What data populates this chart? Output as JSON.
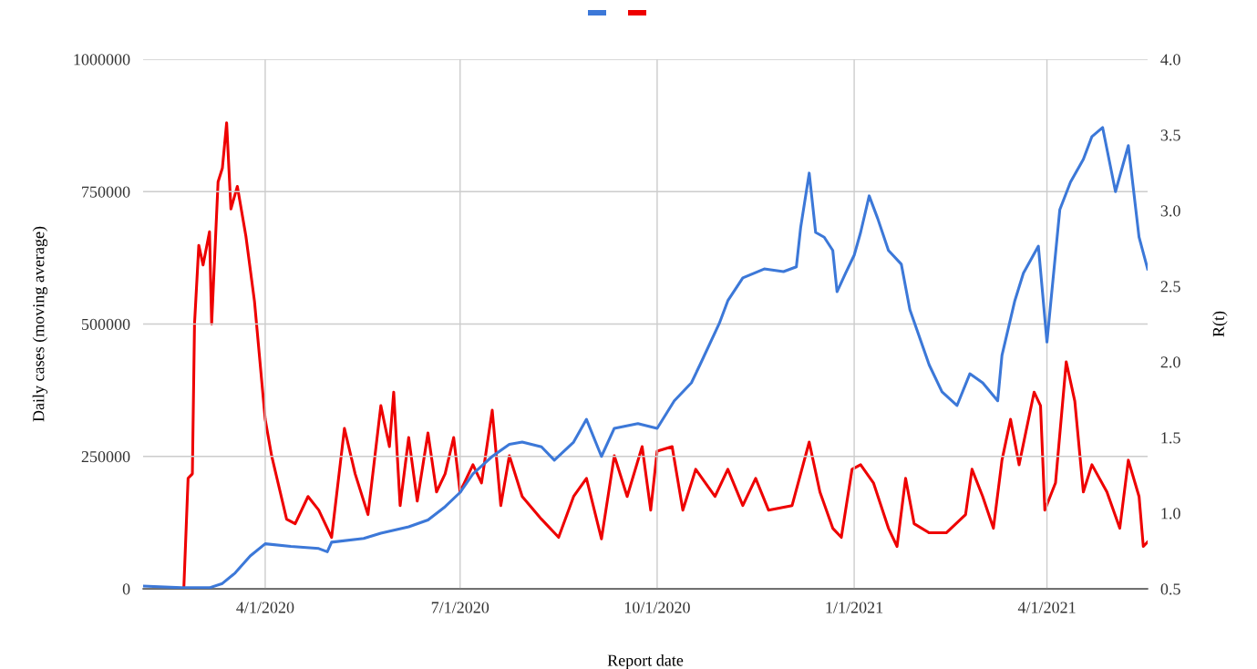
{
  "chart_data": {
    "type": "line",
    "xlabel": "Report date",
    "ylabel": "Daily cases (moving average)",
    "y2label": "R(t)",
    "xlim": [
      "2020-02-04",
      "2021-05-18"
    ],
    "xticks": [
      {
        "value": "2020-04-01",
        "label": "4/1/2020"
      },
      {
        "value": "2020-07-01",
        "label": "7/1/2020"
      },
      {
        "value": "2020-10-01",
        "label": "10/1/2020"
      },
      {
        "value": "2021-01-01",
        "label": "1/1/2021"
      },
      {
        "value": "2021-04-01",
        "label": "4/1/2021"
      }
    ],
    "ylim": [
      0,
      1000000
    ],
    "yticks": [
      0,
      250000,
      500000,
      750000,
      1000000
    ],
    "y2lim": [
      0.5,
      4.0
    ],
    "y2ticks": [
      0.5,
      {
        "value": 1.0,
        "label": "1.0"
      },
      1.5,
      {
        "value": 2.0,
        "label": "2.0"
      },
      2.5,
      {
        "value": 3.0,
        "label": "3.0"
      },
      3.5,
      {
        "value": 4.0,
        "label": "4.0"
      }
    ],
    "grid": true,
    "series": [
      {
        "color": "#3c78d8",
        "x": [
          "2020-02-04",
          "2020-02-22",
          "2020-03-06",
          "2020-03-12",
          "2020-03-18",
          "2020-03-25",
          "2020-04-01",
          "2020-04-13",
          "2020-04-26",
          "2020-04-30",
          "2020-05-02",
          "2020-05-17",
          "2020-05-25",
          "2020-06-07",
          "2020-06-16",
          "2020-06-24",
          "2020-07-01",
          "2020-07-07",
          "2020-07-16",
          "2020-07-24",
          "2020-07-30",
          "2020-08-08",
          "2020-08-14",
          "2020-08-23",
          "2020-08-29",
          "2020-09-05",
          "2020-09-11",
          "2020-09-22",
          "2020-10-01",
          "2020-10-09",
          "2020-10-17",
          "2020-10-21",
          "2020-10-30",
          "2020-11-03",
          "2020-11-10",
          "2020-11-20",
          "2020-11-29",
          "2020-12-05",
          "2020-12-07",
          "2020-12-11",
          "2020-12-14",
          "2020-12-18",
          "2020-12-22",
          "2020-12-24",
          "2020-12-28",
          "2021-01-01",
          "2021-01-04",
          "2021-01-08",
          "2021-01-12",
          "2021-01-17",
          "2021-01-23",
          "2021-01-27",
          "2021-02-05",
          "2021-02-11",
          "2021-02-18",
          "2021-02-24",
          "2021-03-02",
          "2021-03-09",
          "2021-03-11",
          "2021-03-17",
          "2021-03-21",
          "2021-03-28",
          "2021-04-01",
          "2021-04-07",
          "2021-04-12",
          "2021-04-18",
          "2021-04-22",
          "2021-04-27",
          "2021-05-03",
          "2021-05-09",
          "2021-05-14",
          "2021-05-18"
        ],
        "values": [
          5000,
          2000,
          2000,
          10000,
          30000,
          62000,
          85000,
          80000,
          76000,
          70000,
          88000,
          95000,
          105000,
          117000,
          130000,
          155000,
          182000,
          217000,
          250000,
          273000,
          277000,
          268000,
          243000,
          277000,
          320000,
          250000,
          303000,
          312000,
          303000,
          355000,
          389000,
          423000,
          501000,
          544000,
          587000,
          604000,
          599000,
          608000,
          682000,
          785000,
          673000,
          664000,
          639000,
          561000,
          596000,
          630000,
          673000,
          742000,
          699000,
          639000,
          613000,
          527000,
          423000,
          372000,
          346000,
          406000,
          389000,
          355000,
          441000,
          544000,
          596000,
          647000,
          466000,
          716000,
          768000,
          811000,
          854000,
          871000,
          750000,
          837000,
          664000,
          604000
        ]
      },
      {
        "color": "#ee0000",
        "axis": "y2",
        "x": [
          "2020-02-23",
          "2020-02-25",
          "2020-02-27",
          "2020-02-28",
          "2020-03-01",
          "2020-03-03",
          "2020-03-06",
          "2020-03-07",
          "2020-03-10",
          "2020-03-12",
          "2020-03-14",
          "2020-03-16",
          "2020-03-19",
          "2020-03-23",
          "2020-03-27",
          "2020-04-01",
          "2020-04-04",
          "2020-04-11",
          "2020-04-15",
          "2020-04-21",
          "2020-04-26",
          "2020-05-02",
          "2020-05-08",
          "2020-05-13",
          "2020-05-19",
          "2020-05-25",
          "2020-05-29",
          "2020-05-31",
          "2020-06-03",
          "2020-06-07",
          "2020-06-11",
          "2020-06-16",
          "2020-06-20",
          "2020-06-24",
          "2020-06-28",
          "2020-07-01",
          "2020-07-07",
          "2020-07-11",
          "2020-07-16",
          "2020-07-20",
          "2020-07-24",
          "2020-07-30",
          "2020-08-08",
          "2020-08-16",
          "2020-08-23",
          "2020-08-29",
          "2020-09-05",
          "2020-09-11",
          "2020-09-17",
          "2020-09-24",
          "2020-09-28",
          "2020-10-01",
          "2020-10-08",
          "2020-10-13",
          "2020-10-19",
          "2020-10-28",
          "2020-11-03",
          "2020-11-10",
          "2020-11-16",
          "2020-11-22",
          "2020-12-03",
          "2020-12-11",
          "2020-12-16",
          "2020-12-22",
          "2020-12-26",
          "2020-12-31",
          "2021-01-04",
          "2021-01-10",
          "2021-01-17",
          "2021-01-21",
          "2021-01-25",
          "2021-01-29",
          "2021-02-05",
          "2021-02-13",
          "2021-02-22",
          "2021-02-25",
          "2021-03-02",
          "2021-03-07",
          "2021-03-11",
          "2021-03-15",
          "2021-03-19",
          "2021-03-26",
          "2021-03-29",
          "2021-03-31",
          "2021-04-05",
          "2021-04-10",
          "2021-04-14",
          "2021-04-18",
          "2021-04-22",
          "2021-04-29",
          "2021-05-05",
          "2021-05-09",
          "2021-05-14",
          "2021-05-16",
          "2021-05-18"
        ],
        "values": [
          0.5,
          1.23,
          1.26,
          2.25,
          2.77,
          2.64,
          2.86,
          2.25,
          3.19,
          3.28,
          3.58,
          3.01,
          3.16,
          2.83,
          2.4,
          1.62,
          1.38,
          0.96,
          0.93,
          1.11,
          1.02,
          0.84,
          1.56,
          1.26,
          0.99,
          1.71,
          1.44,
          1.8,
          1.05,
          1.5,
          1.08,
          1.53,
          1.14,
          1.26,
          1.5,
          1.14,
          1.32,
          1.2,
          1.68,
          1.05,
          1.38,
          1.11,
          0.96,
          0.84,
          1.11,
          1.23,
          0.83,
          1.38,
          1.11,
          1.44,
          1.02,
          1.41,
          1.44,
          1.02,
          1.29,
          1.11,
          1.29,
          1.05,
          1.23,
          1.02,
          1.05,
          1.47,
          1.14,
          0.9,
          0.84,
          1.29,
          1.32,
          1.2,
          0.9,
          0.78,
          1.23,
          0.93,
          0.87,
          0.87,
          0.99,
          1.29,
          1.11,
          0.9,
          1.35,
          1.62,
          1.32,
          1.8,
          1.71,
          1.02,
          1.2,
          2.0,
          1.74,
          1.14,
          1.32,
          1.14,
          0.9,
          1.35,
          1.11,
          0.78,
          0.81
        ]
      }
    ]
  }
}
